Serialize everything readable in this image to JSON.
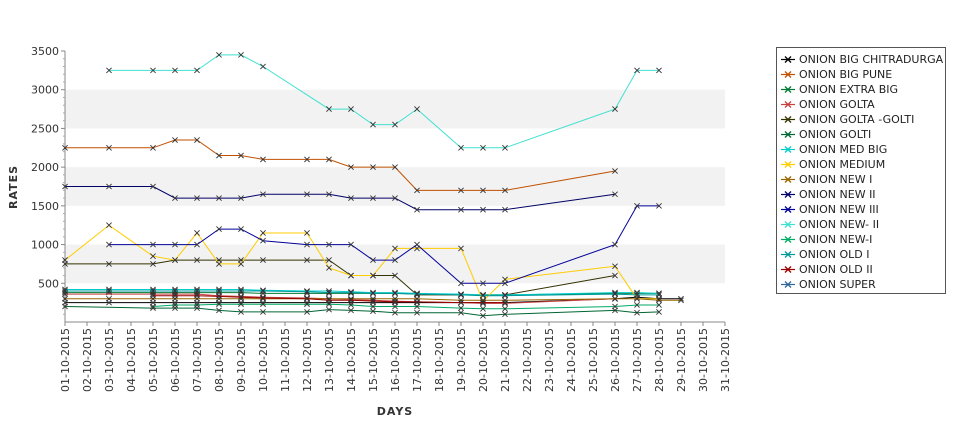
{
  "chart_data": {
    "type": "line",
    "xlabel": "DAYS",
    "ylabel": "RATES",
    "ylim": [
      0,
      3500
    ],
    "yticks": [
      500,
      1000,
      1500,
      2000,
      2500,
      3000,
      3500
    ],
    "grid": "alternating horizontal bands",
    "legend_position": "right",
    "categories": [
      "01-10-2015",
      "02-10-2015",
      "03-10-2015",
      "04-10-2015",
      "05-10-2015",
      "06-10-2015",
      "07-10-2015",
      "08-10-2015",
      "09-10-2015",
      "10-10-2015",
      "11-10-2015",
      "12-10-2015",
      "13-10-2015",
      "14-10-2015",
      "15-10-2015",
      "16-10-2015",
      "17-10-2015",
      "18-10-2015",
      "19-10-2015",
      "20-10-2015",
      "21-10-2015",
      "22-10-2015",
      "23-10-2015",
      "24-10-2015",
      "25-10-2015",
      "26-10-2015",
      "27-10-2015",
      "28-10-2015",
      "29-10-2015",
      "30-10-2015",
      "31-10-2015"
    ],
    "series": [
      {
        "name": "ONION BIG CHITRADURGA",
        "color": "#000000",
        "values": [
          250,
          null,
          250,
          null,
          250,
          250,
          250,
          250,
          250,
          250,
          null,
          250,
          250,
          250,
          250,
          250,
          250,
          null,
          250,
          250,
          250,
          null,
          null,
          null,
          null,
          300,
          320,
          300,
          300,
          null,
          null
        ]
      },
      {
        "name": "ONION BIG PUNE",
        "color": "#c05000",
        "values": [
          2250,
          null,
          2250,
          null,
          2250,
          2350,
          2350,
          2150,
          2150,
          2100,
          null,
          2100,
          2100,
          2000,
          2000,
          2000,
          1700,
          null,
          1700,
          1700,
          1700,
          null,
          null,
          null,
          null,
          1950,
          null,
          null,
          null,
          null,
          null
        ]
      },
      {
        "name": "ONION EXTRA BIG",
        "color": "#007a33",
        "values": [
          380,
          null,
          380,
          null,
          380,
          380,
          380,
          380,
          380,
          370,
          null,
          370,
          370,
          370,
          370,
          370,
          360,
          null,
          350,
          350,
          350,
          null,
          null,
          null,
          null,
          370,
          370,
          370,
          null,
          null,
          null
        ]
      },
      {
        "name": "ONION GOLTA",
        "color": "#c84040",
        "values": [
          360,
          null,
          null,
          null,
          360,
          360,
          360,
          340,
          330,
          320,
          null,
          310,
          300,
          290,
          280,
          270,
          260,
          null,
          250,
          240,
          240,
          null,
          null,
          null,
          null,
          300,
          null,
          null,
          null,
          null,
          null
        ]
      },
      {
        "name": "ONION GOLTA -GOLTI",
        "color": "#333300",
        "values": [
          750,
          null,
          750,
          null,
          750,
          800,
          800,
          800,
          800,
          800,
          null,
          800,
          800,
          600,
          600,
          600,
          350,
          null,
          350,
          350,
          350,
          null,
          null,
          null,
          null,
          600,
          null,
          null,
          null,
          null,
          null
        ]
      },
      {
        "name": "ONION GOLTI",
        "color": "#006633",
        "values": [
          200,
          null,
          null,
          null,
          180,
          180,
          180,
          150,
          130,
          130,
          null,
          130,
          160,
          150,
          140,
          120,
          120,
          null,
          120,
          80,
          100,
          null,
          null,
          null,
          null,
          150,
          120,
          130,
          null,
          null,
          null
        ]
      },
      {
        "name": "ONION MED BIG",
        "color": "#00cccc",
        "values": [
          420,
          null,
          420,
          null,
          420,
          420,
          420,
          420,
          420,
          410,
          null,
          400,
          400,
          390,
          380,
          380,
          370,
          null,
          360,
          350,
          350,
          null,
          null,
          null,
          null,
          380,
          380,
          370,
          null,
          null,
          null
        ]
      },
      {
        "name": "ONION MEDIUM",
        "color": "#ffcc00",
        "values": [
          800,
          null,
          1250,
          null,
          850,
          800,
          1150,
          750,
          750,
          1150,
          null,
          1150,
          700,
          600,
          600,
          950,
          950,
          null,
          950,
          270,
          550,
          null,
          null,
          null,
          null,
          720,
          300,
          300,
          null,
          null,
          null
        ]
      },
      {
        "name": "ONION NEW I",
        "color": "#996600",
        "values": [
          300,
          null,
          300,
          null,
          300,
          300,
          300,
          300,
          300,
          300,
          null,
          300,
          300,
          300,
          300,
          300,
          300,
          null,
          280,
          280,
          280,
          null,
          null,
          null,
          null,
          300,
          300,
          280,
          280,
          null,
          null
        ]
      },
      {
        "name": "ONION NEW II",
        "color": "#000066",
        "values": [
          1750,
          null,
          1750,
          null,
          1750,
          1600,
          1600,
          1600,
          1600,
          1650,
          null,
          1650,
          1650,
          1600,
          1600,
          1600,
          1450,
          null,
          1450,
          1450,
          1450,
          null,
          null,
          null,
          null,
          1650,
          null,
          null,
          null,
          null,
          null
        ]
      },
      {
        "name": "ONION NEW III",
        "color": "#000099",
        "values": [
          null,
          null,
          1000,
          null,
          1000,
          1000,
          1000,
          1200,
          1200,
          1050,
          null,
          1000,
          1000,
          1000,
          800,
          800,
          1000,
          null,
          500,
          500,
          500,
          null,
          null,
          null,
          null,
          1000,
          1500,
          1500,
          null,
          null,
          null
        ]
      },
      {
        "name": "ONION NEW- II",
        "color": "#40e0d0",
        "values": [
          null,
          null,
          3250,
          null,
          3250,
          3250,
          3250,
          3450,
          3450,
          3300,
          null,
          null,
          2750,
          2750,
          2550,
          2550,
          2750,
          null,
          2250,
          2250,
          2250,
          null,
          null,
          null,
          null,
          2750,
          3250,
          3250,
          null,
          null,
          null
        ]
      },
      {
        "name": "ONION NEW-I",
        "color": "#00aa66",
        "values": [
          null,
          null,
          null,
          null,
          200,
          220,
          220,
          230,
          230,
          230,
          null,
          230,
          230,
          220,
          200,
          200,
          200,
          null,
          180,
          170,
          170,
          null,
          null,
          null,
          null,
          200,
          220,
          220,
          null,
          null,
          null
        ]
      },
      {
        "name": "ONION OLD I",
        "color": "#009999",
        "values": [
          400,
          null,
          400,
          null,
          400,
          400,
          400,
          400,
          400,
          400,
          null,
          390,
          380,
          380,
          370,
          370,
          360,
          null,
          350,
          340,
          340,
          null,
          null,
          null,
          null,
          360,
          350,
          350,
          null,
          null,
          null
        ]
      },
      {
        "name": "ONION OLD II",
        "color": "#990000",
        "values": [
          null,
          null,
          null,
          null,
          340,
          340,
          340,
          330,
          320,
          310,
          null,
          300,
          280,
          280,
          270,
          260,
          260,
          null,
          250,
          250,
          250,
          null,
          null,
          null,
          null,
          null,
          null,
          null,
          null,
          null,
          null
        ]
      },
      {
        "name": "ONION SUPER",
        "color": "#336699",
        "values": [
          null,
          null,
          null,
          null,
          null,
          null,
          null,
          null,
          null,
          null,
          null,
          null,
          null,
          null,
          null,
          null,
          null,
          null,
          null,
          null,
          null,
          null,
          null,
          null,
          null,
          null,
          null,
          null,
          null,
          null,
          null
        ]
      }
    ]
  }
}
